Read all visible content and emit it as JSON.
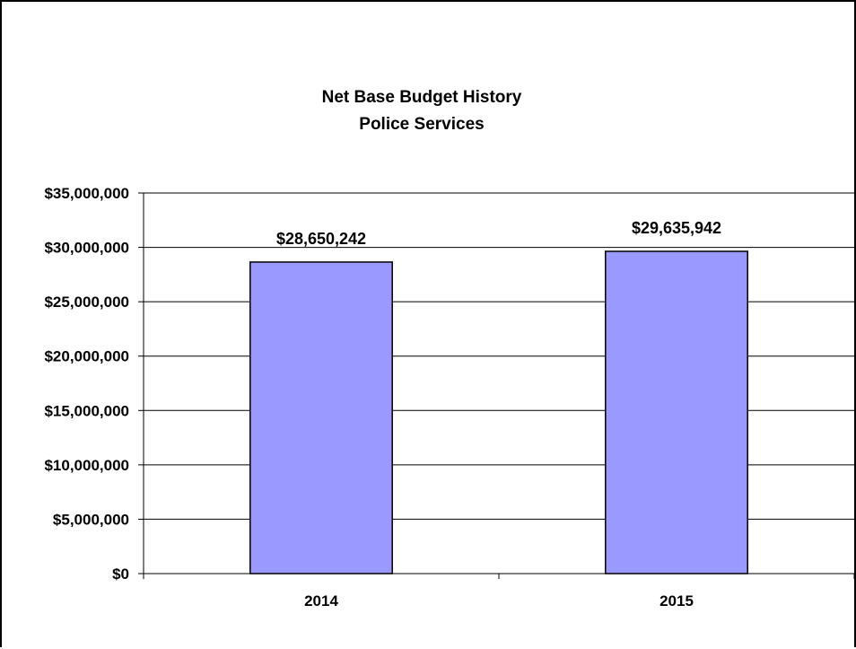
{
  "chart_data": {
    "type": "bar",
    "title_lines": [
      "Net Base Budget History",
      "Police Services"
    ],
    "categories": [
      "2014",
      "2015"
    ],
    "values": [
      28650242,
      29635942
    ],
    "data_labels": [
      "$28,650,242",
      "$29,635,942"
    ],
    "xlabel": "",
    "ylabel": "",
    "ylim": [
      0,
      35000000
    ],
    "yticks": [
      0,
      5000000,
      10000000,
      15000000,
      20000000,
      25000000,
      30000000,
      35000000
    ],
    "ytick_labels": [
      "$0",
      "$5,000,000",
      "$10,000,000",
      "$15,000,000",
      "$20,000,000",
      "$25,000,000",
      "$30,000,000",
      "$35,000,000"
    ],
    "grid": true,
    "legend": "none",
    "colors": {
      "bar_fill": "#9999ff",
      "bar_stroke": "#000000",
      "grid": "#000000"
    }
  }
}
